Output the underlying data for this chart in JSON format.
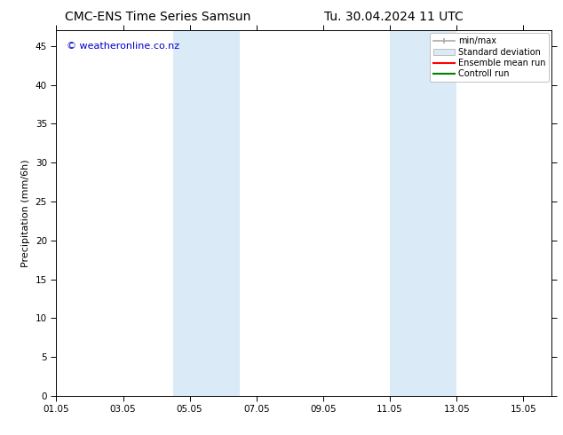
{
  "title_left": "CMC-ENS Time Series Samsun",
  "title_right": "Tu. 30.04.2024 11 UTC",
  "ylabel": "Precipitation (mm/6h)",
  "ylim": [
    0,
    47
  ],
  "yticks": [
    0,
    5,
    10,
    15,
    20,
    25,
    30,
    35,
    40,
    45
  ],
  "xtick_labels": [
    "01.05",
    "03.05",
    "05.05",
    "07.05",
    "09.05",
    "11.05",
    "13.05",
    "15.05"
  ],
  "xtick_positions": [
    0,
    2,
    4,
    6,
    8,
    10,
    12,
    14
  ],
  "xlim": [
    0,
    14.85
  ],
  "bg_color": "#ffffff",
  "plot_bg_color": "#ffffff",
  "shaded_regions": [
    {
      "x_start": 3.85,
      "x_end": 5.15,
      "color": "#daeaf7"
    },
    {
      "x_start": 9.85,
      "x_end": 11.15,
      "color": "#daeaf7"
    },
    {
      "x_start": 11.15,
      "x_end": 12.15,
      "color": "#daeaf7"
    }
  ],
  "watermark_text": "© weatheronline.co.nz",
  "watermark_color": "#0000cc",
  "watermark_fontsize": 8,
  "legend_labels": [
    "min/max",
    "Standard deviation",
    "Ensemble mean run",
    "Controll run"
  ],
  "legend_line_color": "#aaaaaa",
  "legend_std_color": "#daeaf7",
  "legend_ens_color": "#ff0000",
  "legend_ctrl_color": "#008000",
  "title_fontsize": 10,
  "axis_label_fontsize": 8,
  "tick_fontsize": 7.5,
  "legend_fontsize": 7,
  "border_color": "#000000"
}
